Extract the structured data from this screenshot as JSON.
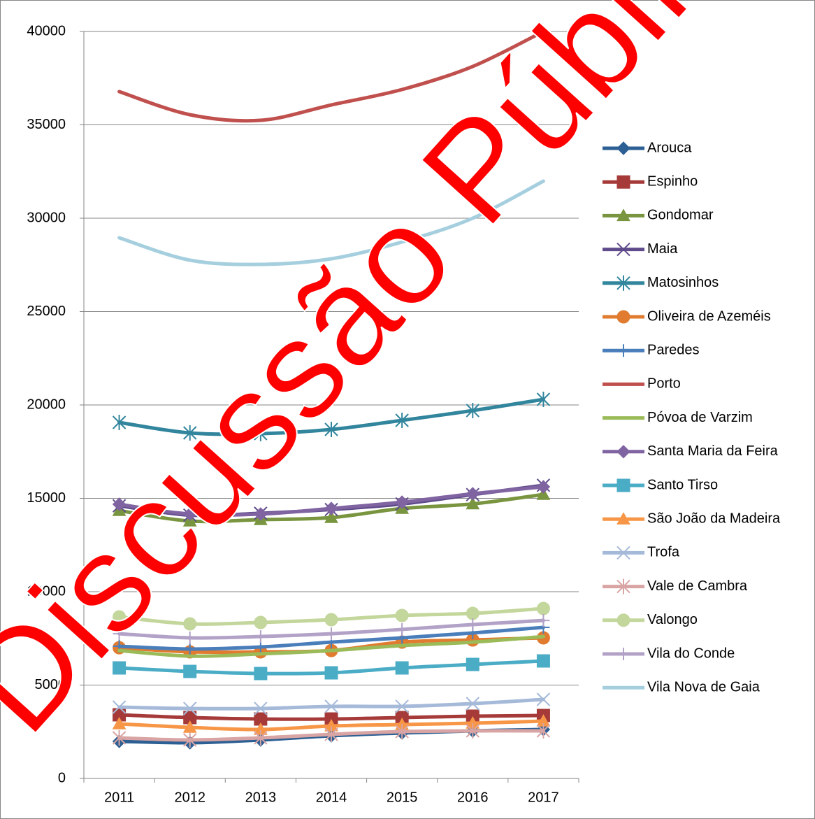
{
  "chart_data": {
    "type": "line",
    "categories": [
      "2011",
      "2012",
      "2013",
      "2014",
      "2015",
      "2016",
      "2017"
    ],
    "ylim": [
      0,
      40000
    ],
    "yticks": [
      0,
      5000,
      10000,
      15000,
      20000,
      25000,
      30000,
      35000,
      40000
    ],
    "grid": true,
    "legend": "right",
    "smooth": true,
    "watermark": "Discussão Pública",
    "series": [
      {
        "name": "Arouca",
        "color": "#2c5f93",
        "marker": "diamond",
        "values": [
          1985,
          1910,
          2060,
          2285,
          2434,
          2547,
          2622
        ]
      },
      {
        "name": "Espinho",
        "color": "#a53a38",
        "marker": "square",
        "values": [
          3408,
          3258,
          3183,
          3183,
          3258,
          3333,
          3370
        ]
      },
      {
        "name": "Gondomar",
        "color": "#79953f",
        "marker": "triangle",
        "values": [
          14345,
          13783,
          13858,
          13970,
          14457,
          14700,
          15206
        ]
      },
      {
        "name": "Maia",
        "color": "#5f4b8b",
        "marker": "x",
        "values": [
          14600,
          14100,
          14200,
          14400,
          14700,
          15200,
          15700
        ]
      },
      {
        "name": "Matosinhos",
        "color": "#31859c",
        "marker": "star",
        "values": [
          19064,
          18502,
          18464,
          18689,
          19176,
          19700,
          20300
        ]
      },
      {
        "name": "Oliveira de Azeméis",
        "color": "#e07b2f",
        "marker": "circle",
        "values": [
          7000,
          6779,
          6779,
          6850,
          7300,
          7416,
          7528
        ]
      },
      {
        "name": "Paredes",
        "color": "#4a7ebb",
        "marker": "plus",
        "values": [
          7079,
          6930,
          7040,
          7300,
          7528,
          7790,
          8090
        ]
      },
      {
        "name": "Porto",
        "color": "#c0504d",
        "marker": "none",
        "values": [
          36779,
          35543,
          35243,
          36067,
          36891,
          38127,
          40000
        ]
      },
      {
        "name": "Póvoa de Varzim",
        "color": "#9bbb59",
        "marker": "none",
        "values": [
          6850,
          6550,
          6670,
          6850,
          7116,
          7300,
          7600
        ]
      },
      {
        "name": "Santa Maria da Feira",
        "color": "#8064a2",
        "marker": "diamond",
        "values": [
          14682,
          14157,
          14157,
          14457,
          14794,
          15243,
          15618
        ]
      },
      {
        "name": "Santo Tirso",
        "color": "#4bacc6",
        "marker": "square",
        "values": [
          5918,
          5730,
          5618,
          5655,
          5918,
          6105,
          6292
        ]
      },
      {
        "name": "São João da Madeira",
        "color": "#f79646",
        "marker": "triangle",
        "values": [
          2921,
          2734,
          2622,
          2809,
          2884,
          2959,
          3071
        ]
      },
      {
        "name": "Trofa",
        "color": "#a5b9d9",
        "marker": "x",
        "values": [
          3820,
          3745,
          3745,
          3860,
          3860,
          4007,
          4232
        ]
      },
      {
        "name": "Vale de Cambra",
        "color": "#d9a5a4",
        "marker": "star",
        "values": [
          2172,
          2060,
          2172,
          2360,
          2509,
          2547,
          2547
        ]
      },
      {
        "name": "Valongo",
        "color": "#c3d69b",
        "marker": "circle",
        "values": [
          8650,
          8277,
          8352,
          8500,
          8727,
          8838,
          9100
        ]
      },
      {
        "name": "Vila do Conde",
        "color": "#b3a2c7",
        "marker": "plus",
        "values": [
          7750,
          7528,
          7600,
          7750,
          7980,
          8240,
          8460
        ]
      },
      {
        "name": "Vila Nova de Gaia",
        "color": "#a5cfde",
        "marker": "none",
        "values": [
          28951,
          27753,
          27528,
          27828,
          28727,
          30000,
          31985
        ]
      }
    ]
  }
}
